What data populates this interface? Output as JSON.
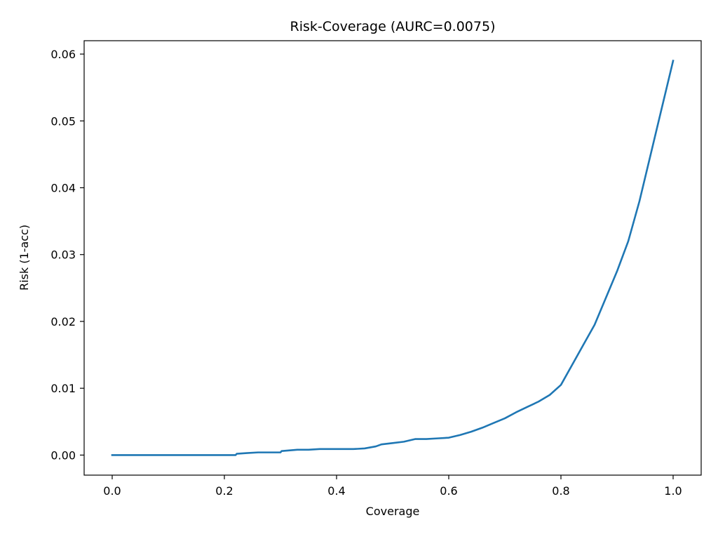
{
  "chart_data": {
    "type": "line",
    "title": "Risk-Coverage (AURC=0.0075)",
    "xlabel": "Coverage",
    "ylabel": "Risk (1-acc)",
    "xlim": [
      -0.05,
      1.05
    ],
    "ylim": [
      -0.003,
      0.062
    ],
    "xticks": [
      0.0,
      0.2,
      0.4,
      0.6,
      0.8,
      1.0
    ],
    "xtick_labels": [
      "0.0",
      "0.2",
      "0.4",
      "0.6",
      "0.8",
      "1.0"
    ],
    "yticks": [
      0.0,
      0.01,
      0.02,
      0.03,
      0.04,
      0.05,
      0.06
    ],
    "ytick_labels": [
      "0.00",
      "0.01",
      "0.02",
      "0.03",
      "0.04",
      "0.05",
      "0.06"
    ],
    "grid": false,
    "series": [
      {
        "color": "#1f77b4",
        "x": [
          0.0,
          0.05,
          0.1,
          0.15,
          0.2,
          0.22,
          0.222,
          0.24,
          0.26,
          0.28,
          0.3,
          0.302,
          0.33,
          0.35,
          0.37,
          0.4,
          0.43,
          0.45,
          0.47,
          0.48,
          0.5,
          0.52,
          0.54,
          0.56,
          0.58,
          0.6,
          0.62,
          0.64,
          0.66,
          0.68,
          0.7,
          0.72,
          0.74,
          0.76,
          0.78,
          0.8,
          0.82,
          0.84,
          0.86,
          0.88,
          0.9,
          0.92,
          0.94,
          0.96,
          0.98,
          1.0
        ],
        "y": [
          0.0,
          0.0,
          0.0,
          0.0,
          0.0,
          0.0,
          0.0002,
          0.0003,
          0.0004,
          0.0004,
          0.0004,
          0.0006,
          0.0008,
          0.0008,
          0.0009,
          0.0009,
          0.0009,
          0.001,
          0.0013,
          0.0016,
          0.0018,
          0.002,
          0.0024,
          0.0024,
          0.0025,
          0.0026,
          0.003,
          0.0035,
          0.0041,
          0.0048,
          0.0055,
          0.0064,
          0.0072,
          0.008,
          0.009,
          0.0105,
          0.0135,
          0.0165,
          0.0195,
          0.0235,
          0.0275,
          0.032,
          0.038,
          0.045,
          0.052,
          0.059
        ]
      }
    ]
  }
}
